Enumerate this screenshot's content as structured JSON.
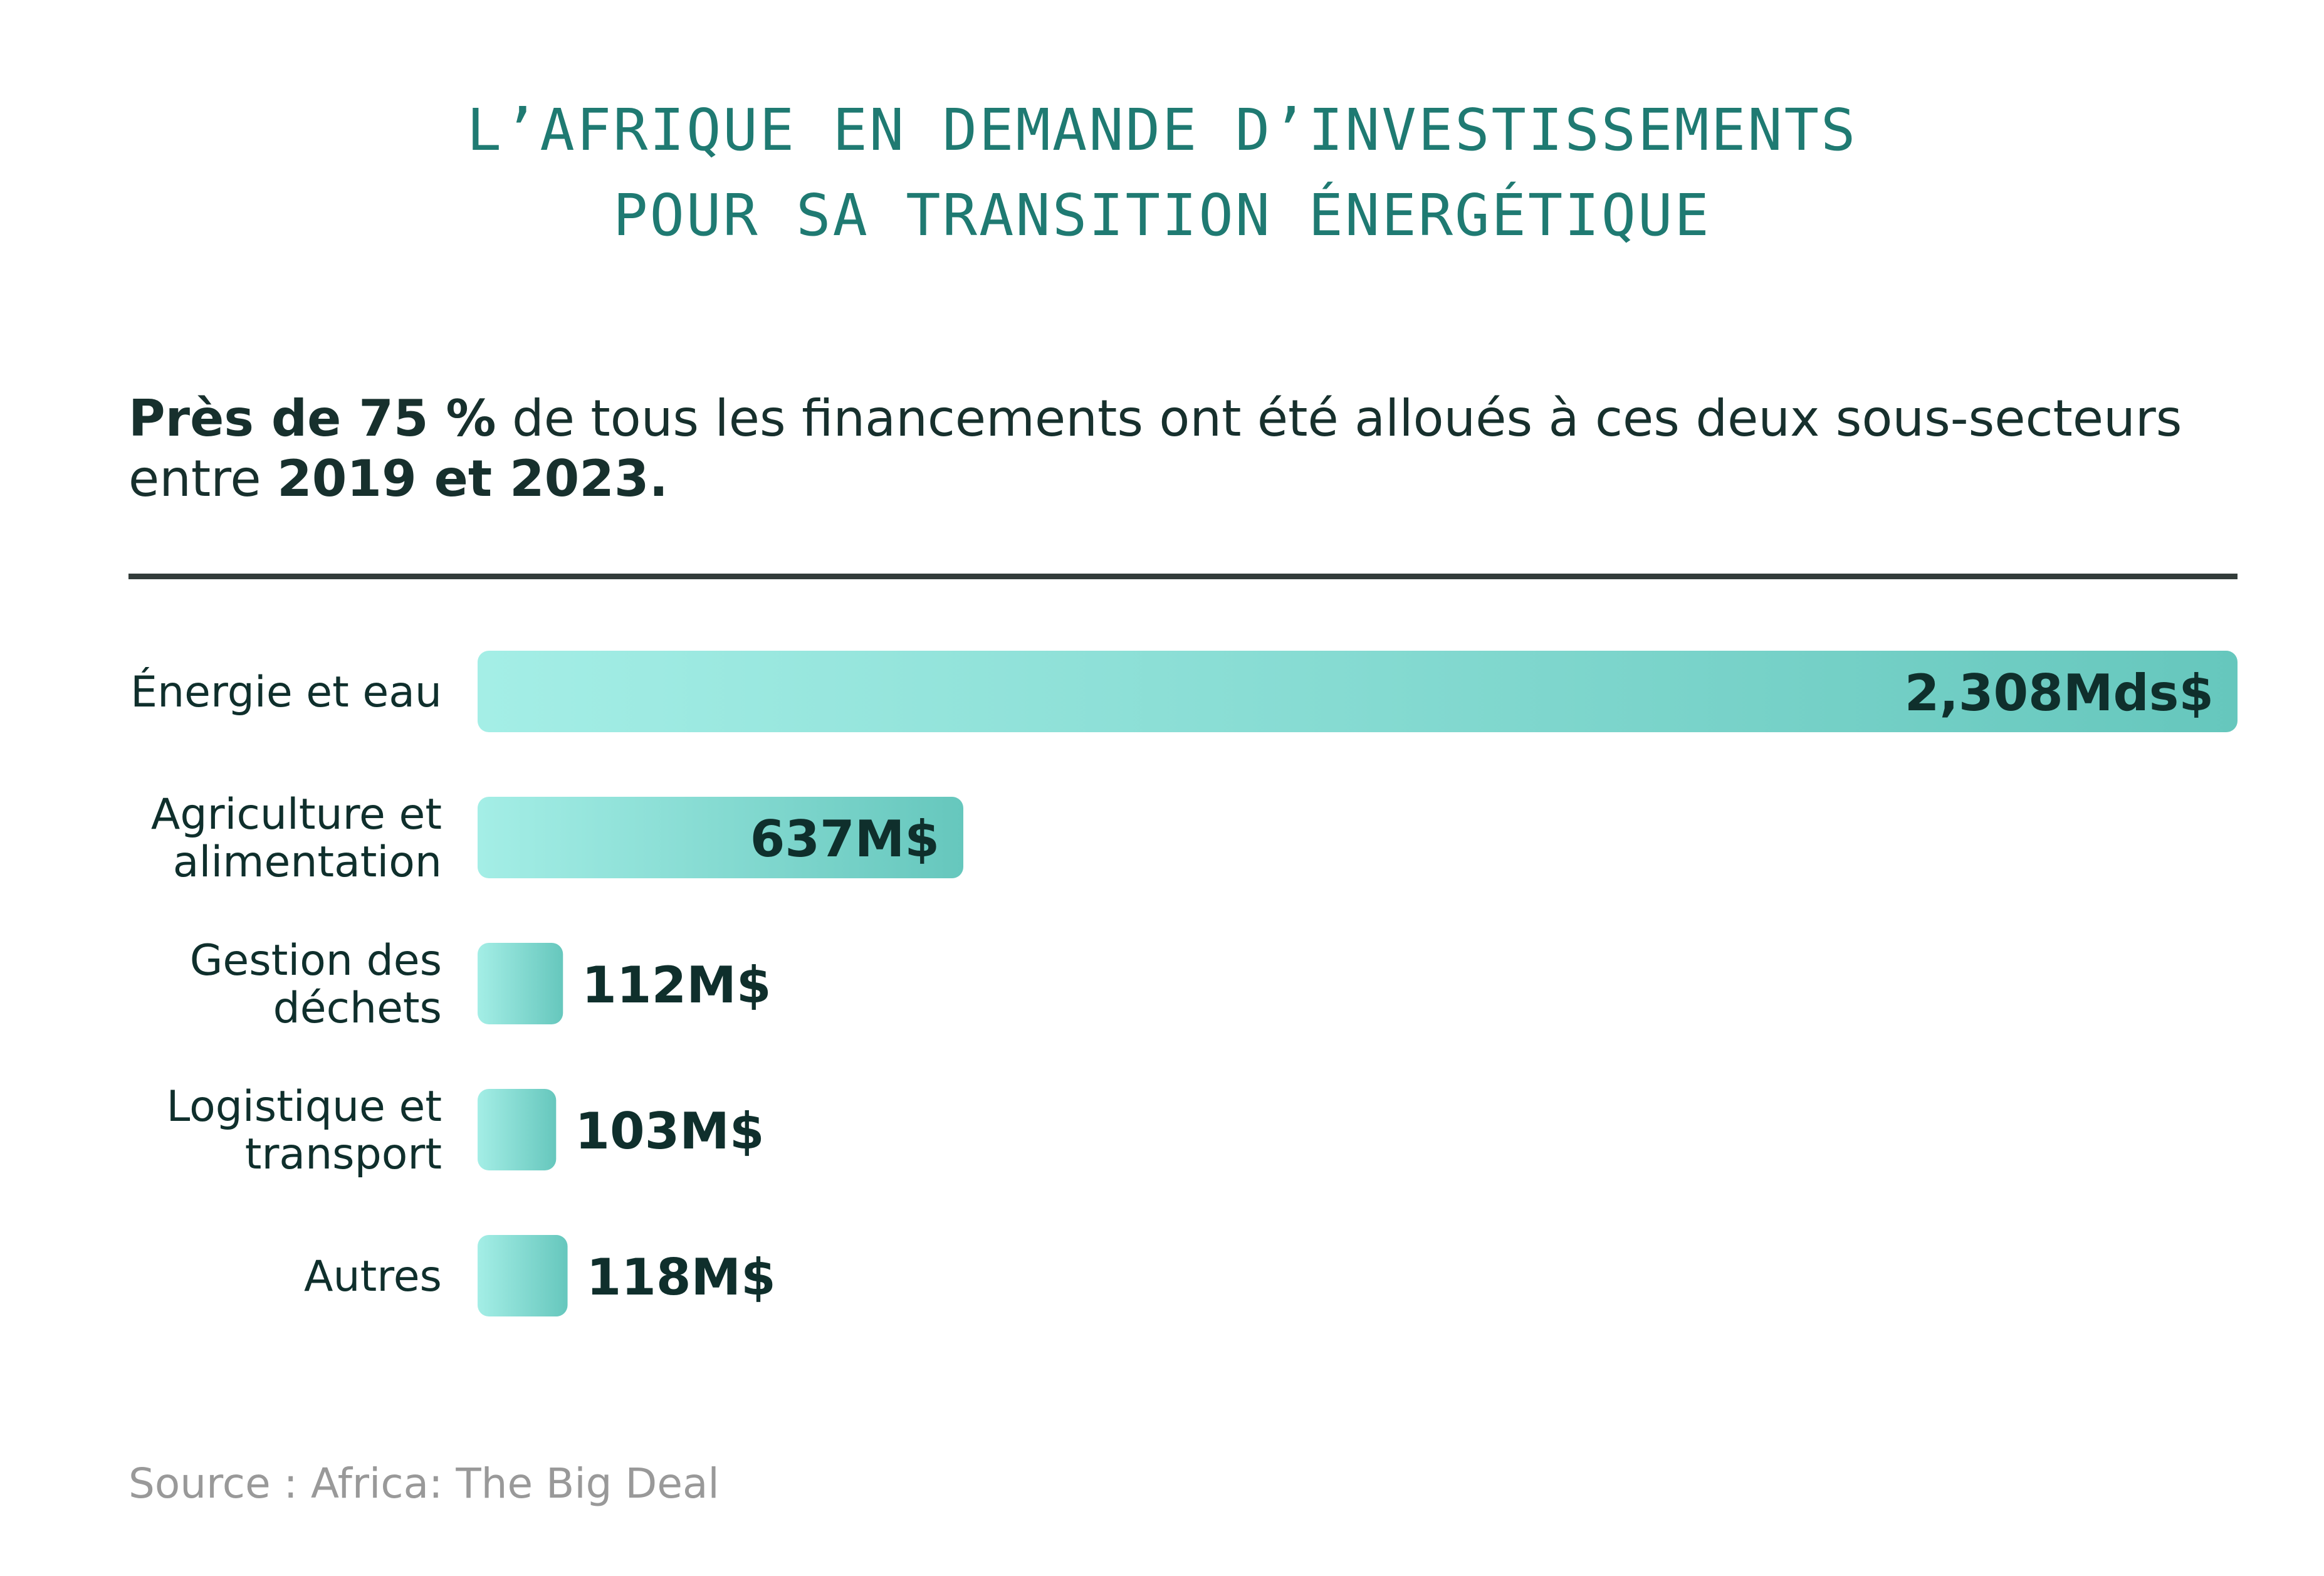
{
  "title": {
    "line1": "L’AFRIQUE EN DEMANDE D’INVESTISSEMENTS",
    "line2": "POUR SA TRANSITION ÉNERGÉTIQUE"
  },
  "subtitle": {
    "bold1": "Près de 75 %",
    "text1": " de tous les financements ont été alloués à ces deux sous-secteurs entre ",
    "bold2": "2019 et 2023."
  },
  "source": "Source : Africa: The Big Deal",
  "colors": {
    "title": "#1f7a72",
    "bar_start": "#a4eee6",
    "bar_end": "#66c7bd",
    "text_dark": "#0f2f2c",
    "divider": "#333c3a",
    "source": "#999999"
  },
  "chart_data": {
    "type": "bar",
    "orientation": "horizontal",
    "unit": "M$",
    "categories": [
      [
        "Énergie et eau"
      ],
      [
        "Agriculture et",
        "alimentation"
      ],
      [
        "Gestion des",
        "déchets"
      ],
      [
        "Logistique et",
        "transport"
      ],
      [
        "Autres"
      ]
    ],
    "values": [
      2308,
      637,
      112,
      103,
      118
    ],
    "value_labels": [
      "2,308Mds$",
      "637M$",
      "112M$",
      "103M$",
      "118M$"
    ],
    "label_inside": [
      true,
      true,
      false,
      false,
      false
    ],
    "xlim": [
      0,
      2308
    ],
    "grid": false,
    "legend": "none"
  }
}
